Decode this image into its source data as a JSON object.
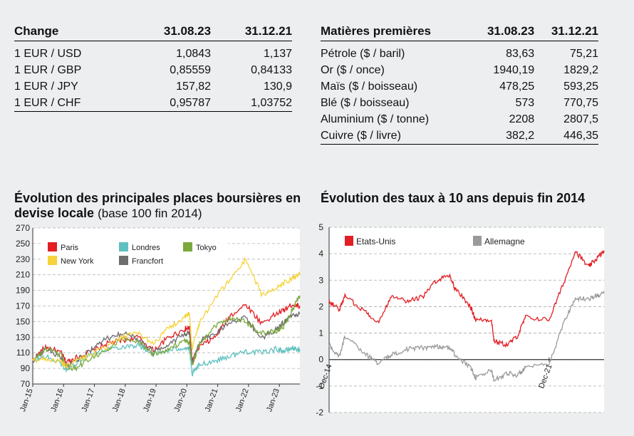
{
  "fx_table": {
    "headers": [
      "Change",
      "31.08.23",
      "31.12.21"
    ],
    "rows": [
      [
        "1 EUR / USD",
        "1,0843",
        "1,137"
      ],
      [
        "1 EUR / GBP",
        "0,85559",
        "0,84133"
      ],
      [
        "1 EUR / JPY",
        "157,82",
        "130,9"
      ],
      [
        "1 EUR / CHF",
        "0,95787",
        "1,03752"
      ]
    ]
  },
  "commodities_table": {
    "headers": [
      "Matières premières",
      "31.08.23",
      "31.12.21"
    ],
    "rows": [
      [
        "Pétrole ($ / baril)",
        "83,63",
        "75,21"
      ],
      [
        "Or ($ / once)",
        "1940,19",
        "1829,2"
      ],
      [
        "Maïs ($ / boisseau)",
        "478,25",
        "593,25"
      ],
      [
        "Blé ($ / boisseau)",
        "573",
        "770,75"
      ],
      [
        "Aluminium ($ / tonne)",
        "2208",
        "2807,5"
      ],
      [
        "Cuivre ($ / livre)",
        "382,2",
        "446,35"
      ]
    ]
  },
  "chart_data": [
    {
      "type": "line",
      "title": "Évolution des principales places boursières en devise locale",
      "subtitle": "(base 100 fin 2014)",
      "x_ticks": [
        "Jan-15",
        "Jan-16",
        "Jan-17",
        "Jan-18",
        "Jan-19",
        "Jan-20",
        "Jan-21",
        "Jan-22",
        "Jan-23"
      ],
      "y_ticks": [
        70,
        90,
        110,
        130,
        150,
        170,
        190,
        210,
        230,
        250,
        270
      ],
      "ylim": [
        70,
        270
      ],
      "xlim": [
        "2015-01",
        "2023-09"
      ],
      "grid": true,
      "legend_position": "top-left",
      "x": [
        "2015-01",
        "2015-06",
        "2015-12",
        "2016-02",
        "2016-06",
        "2016-12",
        "2017-06",
        "2017-12",
        "2018-06",
        "2018-12",
        "2019-06",
        "2019-12",
        "2020-02",
        "2020-03",
        "2020-06",
        "2020-12",
        "2021-06",
        "2021-12",
        "2022-06",
        "2022-12",
        "2023-03",
        "2023-06",
        "2023-09"
      ],
      "series": [
        {
          "name": "Paris",
          "color": "#e31e24",
          "values": [
            100,
            118,
            110,
            98,
            104,
            112,
            122,
            126,
            130,
            113,
            130,
            140,
            142,
            100,
            118,
            130,
            158,
            172,
            148,
            160,
            165,
            172,
            170
          ]
        },
        {
          "name": "Londres",
          "color": "#5fc0c0",
          "values": [
            100,
            105,
            96,
            88,
            97,
            110,
            115,
            118,
            120,
            108,
            113,
            117,
            115,
            82,
            95,
            100,
            106,
            112,
            110,
            115,
            112,
            116,
            114
          ]
        },
        {
          "name": "Tokyo",
          "color": "#7aa93c",
          "values": [
            100,
            115,
            107,
            92,
            90,
            105,
            113,
            128,
            125,
            108,
            115,
            125,
            122,
            95,
            122,
            145,
            155,
            150,
            135,
            138,
            145,
            165,
            183
          ]
        },
        {
          "name": "New York",
          "color": "#f6d33b",
          "values": [
            100,
            103,
            98,
            92,
            100,
            108,
            118,
            130,
            135,
            122,
            142,
            155,
            160,
            115,
            150,
            180,
            205,
            230,
            185,
            192,
            200,
            205,
            210
          ]
        },
        {
          "name": "Francfort",
          "color": "#6e6e6e",
          "values": [
            100,
            115,
            105,
            92,
            100,
            115,
            128,
            135,
            128,
            110,
            122,
            133,
            135,
            95,
            125,
            135,
            150,
            155,
            128,
            140,
            150,
            158,
            160
          ]
        }
      ]
    },
    {
      "type": "line",
      "title": "Évolution des taux à 10 ans depuis fin 2014",
      "y_ticks": [
        5,
        4,
        3,
        2,
        1,
        0,
        -1,
        -2
      ],
      "ylim": [
        -2,
        5
      ],
      "xlim": [
        "2014-12",
        "2023-09"
      ],
      "x_ticks": [
        "Dec-14",
        "Dec-21"
      ],
      "grid": true,
      "legend_position": "top",
      "x": [
        "2014-12",
        "2015-04",
        "2015-06",
        "2016-02",
        "2016-07",
        "2016-12",
        "2017-06",
        "2017-12",
        "2018-05",
        "2018-10",
        "2018-12",
        "2019-06",
        "2019-08",
        "2020-02",
        "2020-03",
        "2020-08",
        "2020-12",
        "2021-03",
        "2021-12",
        "2022-06",
        "2022-10",
        "2023-03",
        "2023-06",
        "2023-09"
      ],
      "series": [
        {
          "name": "Etats-Unis",
          "color": "#e31e24",
          "values": [
            2.2,
            1.9,
            2.4,
            1.8,
            1.4,
            2.45,
            2.2,
            2.4,
            3.0,
            3.2,
            2.7,
            2.0,
            1.5,
            1.5,
            0.7,
            0.55,
            0.9,
            1.6,
            1.5,
            3.0,
            4.1,
            3.5,
            3.8,
            4.1
          ]
        },
        {
          "name": "Allemagne",
          "color": "#9a9a9a",
          "values": [
            0.55,
            0.1,
            0.9,
            0.2,
            -0.15,
            0.2,
            0.4,
            0.45,
            0.5,
            0.45,
            0.2,
            -0.3,
            -0.7,
            -0.4,
            -0.8,
            -0.5,
            -0.6,
            -0.3,
            -0.2,
            1.5,
            2.3,
            2.3,
            2.4,
            2.5
          ]
        }
      ]
    }
  ]
}
